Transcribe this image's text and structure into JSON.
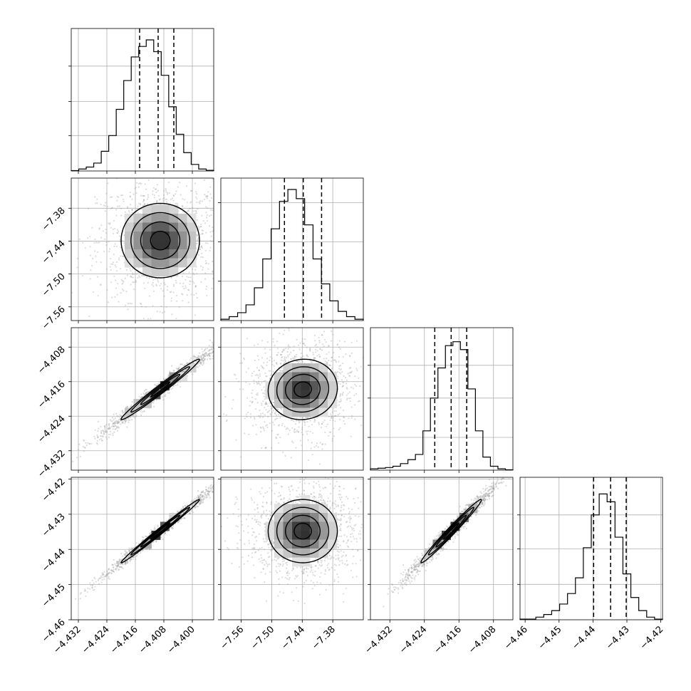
{
  "chart_data": {
    "type": "corner",
    "parameters": [
      {
        "xlim": [
          -4.434,
          -4.394
        ],
        "ylim": [
          -7.585,
          -7.325
        ],
        "xticks": [
          -4.432,
          -4.424,
          -4.416,
          -4.408,
          -4.4
        ],
        "xtick_labels": [
          "−4.432",
          "−4.424",
          "−4.416",
          "−4.408",
          "−4.400"
        ],
        "yticks": [
          -7.56,
          -7.5,
          -7.44,
          -7.38
        ],
        "ytick_labels": [
          "−7.56",
          "−7.50",
          "−7.44",
          "−7.38"
        ],
        "quantiles": [
          -4.4148,
          -4.4096,
          -4.4052
        ]
      },
      {
        "xlim": [
          -7.6,
          -7.32
        ],
        "xticks": [
          -7.56,
          -7.5,
          -7.44,
          -7.38
        ],
        "xtick_labels": [
          "−7.56",
          "−7.50",
          "−7.44",
          "−7.38"
        ],
        "ylim": [
          -4.4365,
          -4.4035
        ],
        "yticks": [
          -4.432,
          -4.424,
          -4.416,
          -4.408
        ],
        "ytick_labels": [
          "−4.432",
          "−4.424",
          "−4.416",
          "−4.408"
        ],
        "quantiles": [
          -7.475,
          -7.438,
          -7.402
        ]
      },
      {
        "xlim": [
          -4.4365,
          -4.4035
        ],
        "xticks": [
          -4.432,
          -4.424,
          -4.416,
          -4.408
        ],
        "xtick_labels": [
          "−4.432",
          "−4.424",
          "−4.416",
          "−4.408"
        ],
        "ylim": [
          -4.46,
          -4.4195
        ],
        "yticks": [
          -4.46,
          -4.45,
          -4.44,
          -4.43,
          -4.42
        ],
        "ytick_labels": [
          "−4.46",
          "−4.45",
          "−4.44",
          "−4.43",
          "−4.42"
        ],
        "quantiles": [
          -4.4216,
          -4.4178,
          -4.4142
        ]
      },
      {
        "xlim": [
          -4.4615,
          -4.4195
        ],
        "xticks": [
          -4.46,
          -4.45,
          -4.44,
          -4.43,
          -4.42
        ],
        "xtick_labels": [
          "−4.46",
          "−4.45",
          "−4.44",
          "−4.43",
          "−4.42"
        ],
        "quantiles": [
          -4.4398,
          -4.4348,
          -4.4302
        ]
      }
    ],
    "histograms": [
      {
        "counts": [
          0.003,
          0.015,
          0.03,
          0.06,
          0.15,
          0.27,
          0.47,
          0.69,
          0.87,
          0.95,
          1.0,
          0.91,
          0.73,
          0.49,
          0.28,
          0.14,
          0.05,
          0.015,
          0.005
        ],
        "y_ticks": [
          0.27,
          0.53,
          0.8
        ]
      },
      {
        "counts": [
          0.01,
          0.03,
          0.06,
          0.12,
          0.25,
          0.47,
          0.7,
          0.91,
          1.0,
          0.93,
          0.73,
          0.47,
          0.28,
          0.15,
          0.07,
          0.03,
          0.01
        ],
        "y_ticks": [
          0.3,
          0.6,
          0.9
        ]
      },
      {
        "counts": [
          0.01,
          0.015,
          0.02,
          0.03,
          0.05,
          0.08,
          0.12,
          0.3,
          0.55,
          0.78,
          0.95,
          0.98,
          0.92,
          0.62,
          0.3,
          0.1,
          0.03,
          0.01,
          0.003
        ],
        "y_ticks": [
          0.25,
          0.55,
          0.8
        ]
      },
      {
        "counts": [
          0.005,
          0.005,
          0.02,
          0.04,
          0.07,
          0.12,
          0.2,
          0.32,
          0.55,
          0.8,
          0.96,
          0.9,
          0.63,
          0.35,
          0.17,
          0.07,
          0.02,
          0.005
        ],
        "y_ticks": [
          0.27,
          0.54,
          0.8
        ]
      }
    ],
    "pairs": [
      {
        "row": 1,
        "col": 0,
        "mean": [
          -4.409,
          -7.439
        ],
        "sd": [
          0.0055,
          0.034
        ],
        "rho": 0.0
      },
      {
        "row": 2,
        "col": 0,
        "mean": [
          -4.409,
          -4.4178
        ],
        "sd": [
          0.0055,
          0.0035
        ],
        "rho": 0.985
      },
      {
        "row": 2,
        "col": 1,
        "mean": [
          -7.439,
          -4.4178
        ],
        "sd": [
          0.034,
          0.0035
        ],
        "rho": 0.05
      },
      {
        "row": 3,
        "col": 0,
        "mean": [
          -4.409,
          -4.4348
        ],
        "sd": [
          0.0055,
          0.0045
        ],
        "rho": 0.993
      },
      {
        "row": 3,
        "col": 1,
        "mean": [
          -7.439,
          -4.4348
        ],
        "sd": [
          0.034,
          0.0045
        ],
        "rho": 0.0
      },
      {
        "row": 3,
        "col": 2,
        "mean": [
          -4.4178,
          -4.4348
        ],
        "sd": [
          0.0035,
          0.0045
        ],
        "rho": 0.985
      }
    ],
    "contour_levels_sigma": [
      0.5,
      1.0,
      1.5,
      2.0
    ],
    "grid": true,
    "colors": {
      "line": "#000000",
      "points": "#9a9a9a",
      "grid": "#b0b0b0"
    }
  }
}
